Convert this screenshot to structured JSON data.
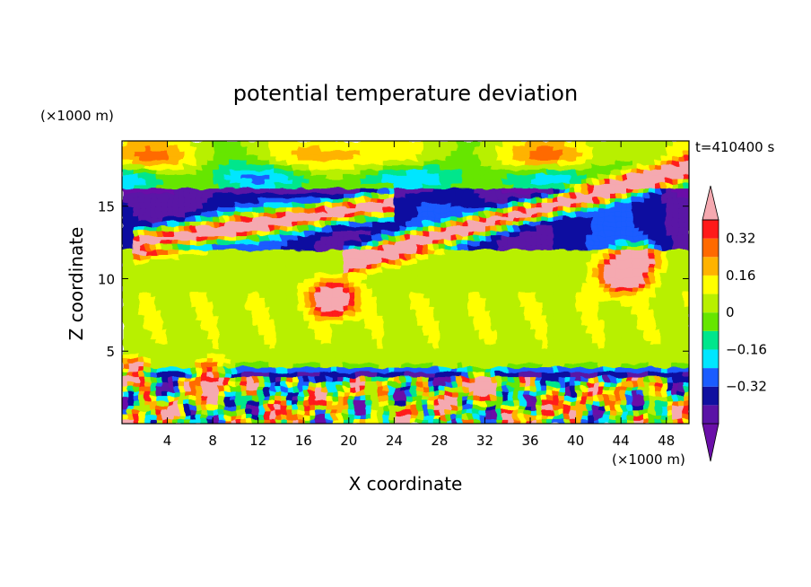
{
  "chart_data": {
    "type": "heatmap",
    "title": "potential temperature deviation",
    "xlabel": "X coordinate",
    "ylabel": "Z coordinate",
    "x_unit_label": "(×1000 m)",
    "y_unit_label": "(×1000 m)",
    "time_label": "t=410400 s",
    "xlim": [
      0,
      50
    ],
    "ylim": [
      0,
      19.5
    ],
    "x_ticks": [
      4,
      8,
      12,
      16,
      20,
      24,
      28,
      32,
      36,
      40,
      44,
      48
    ],
    "y_ticks": [
      5,
      10,
      15
    ],
    "colorbar": {
      "levels": [
        -0.48,
        -0.4,
        -0.32,
        -0.24,
        -0.16,
        -0.08,
        0,
        0.08,
        0.16,
        0.24,
        0.32,
        0.4,
        0.48
      ],
      "tick_labels": [
        "0.32",
        "0.16",
        "0",
        "−0.16",
        "−0.32"
      ],
      "tick_values": [
        0.32,
        0.16,
        0,
        -0.16,
        -0.32
      ],
      "colors": [
        "#6a0fa8",
        "#5a13a6",
        "#1010a0",
        "#1a5cff",
        "#00e6ff",
        "#00e68c",
        "#66e600",
        "#b8f000",
        "#ffff00",
        "#ffb300",
        "#ff6a00",
        "#ff1a1a",
        "#f5a9b0"
      ],
      "extend": "both"
    },
    "features": [
      {
        "kind": "band",
        "z": [
          12.0,
          16.2
        ],
        "value": -0.45,
        "desc": "cold layer"
      },
      {
        "kind": "streak",
        "x": [
          2,
          24
        ],
        "z": [
          12.6,
          15.3
        ],
        "value": 0.48
      },
      {
        "kind": "streak",
        "x": [
          20,
          50
        ],
        "z": [
          11.3,
          17.6
        ],
        "value": 0.48
      },
      {
        "kind": "blob",
        "x": 18.5,
        "z": 8.5,
        "value": 0.48
      },
      {
        "kind": "blob",
        "x": 7.5,
        "z": 3.2,
        "value": 0.48
      },
      {
        "kind": "blob",
        "x": 1.2,
        "z": 3.4,
        "value": 0.48
      },
      {
        "kind": "blob",
        "x": 44,
        "z": 10.4,
        "value": 0.48
      },
      {
        "kind": "turbulent_layer",
        "z": [
          0,
          3.6
        ]
      }
    ]
  }
}
